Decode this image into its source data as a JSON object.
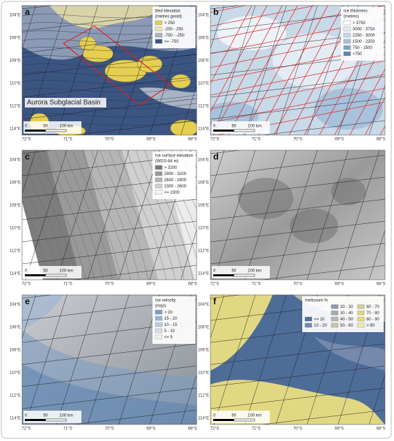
{
  "panels": [
    {
      "letter": "a",
      "legend_title": [
        "Bed elevation",
        "(metres geoid)"
      ],
      "legend": [
        {
          "label": "> 250",
          "color": "#e6cf4f"
        },
        {
          "label": "-250 - 250",
          "color": "#e9e2b4"
        },
        {
          "label": "-750 - -250",
          "color": "#a9b3c6"
        },
        {
          "label": "<= -750",
          "color": "#3b5582"
        }
      ],
      "annotation": "Aurora Subglacial Basin",
      "lat_labels": [
        "104°E",
        "106°E",
        "108°E",
        "110°E",
        "112°E",
        "114°E"
      ],
      "lon_labels": [
        "72°S",
        "71°S",
        "70°S",
        "69°S",
        "68°S"
      ],
      "scale_labels": [
        "0",
        "50",
        "100 km"
      ]
    },
    {
      "letter": "b",
      "legend_title": [
        "Ice thickness",
        "(metres)"
      ],
      "legend": [
        {
          "label": "> 3750",
          "color": "#ffffff"
        },
        {
          "label": "3000 - 3750",
          "color": "#e3ecf4"
        },
        {
          "label": "2250 - 3000",
          "color": "#c8d9e8"
        },
        {
          "label": "1500 - 2250",
          "color": "#a6c2dc"
        },
        {
          "label": "750 - 1500",
          "color": "#7fa4c8"
        },
        {
          "label": "<750",
          "color": "#5a86b6"
        }
      ],
      "lat_labels": [
        "104°E",
        "106°E",
        "108°E",
        "110°E",
        "112°E",
        "114°E"
      ],
      "lon_labels": [
        "72°S",
        "71°S",
        "70°S",
        "69°S",
        "68°S"
      ],
      "scale_labels": [
        "0",
        "50",
        "100 km"
      ]
    },
    {
      "letter": "c",
      "legend_title": [
        "Ice surface elevation",
        "(WGS-84 m)"
      ],
      "legend": [
        {
          "label": "> 3200",
          "color": "#777777"
        },
        {
          "label": "2900 - 3200",
          "color": "#999999"
        },
        {
          "label": "2600 - 2900",
          "color": "#b5b5b5"
        },
        {
          "label": "2300 - 2600",
          "color": "#d0d0d0"
        },
        {
          "label": "<= 2300",
          "color": "#f4f4f4"
        }
      ],
      "lat_labels": [
        "104°E",
        "106°E",
        "108°E",
        "110°E",
        "112°E",
        "114°E"
      ],
      "lon_labels": [
        "72°S",
        "71°S",
        "70°S",
        "69°S",
        "68°S"
      ],
      "scale_labels": [
        "0",
        "50",
        "100 km"
      ]
    },
    {
      "letter": "d",
      "lat_labels": [
        "104°E",
        "106°E",
        "108°E",
        "110°E",
        "112°E",
        "114°E"
      ],
      "lon_labels": [
        "72°S",
        "71°S",
        "70°S",
        "69°S",
        "68°S"
      ],
      "scale_labels": [
        "0",
        "50",
        "100 km"
      ]
    },
    {
      "letter": "e",
      "legend_title": [
        "Ice velocity",
        "(m/yr)"
      ],
      "legend": [
        {
          "label": "> 20",
          "color": "#7a9cc4"
        },
        {
          "label": "15 - 20",
          "color": "#9ab4d4"
        },
        {
          "label": "10 - 15",
          "color": "#b8cbe2"
        },
        {
          "label": "5 - 10",
          "color": "#d4e0ee"
        },
        {
          "label": "<= 5",
          "color": "#eef2f8"
        }
      ],
      "lat_labels": [
        "104°E",
        "106°E",
        "108°E",
        "110°E",
        "112°E",
        "114°E"
      ],
      "lon_labels": [
        "72°S",
        "71°S",
        "70°S",
        "69°S",
        "68°S"
      ],
      "scale_labels": [
        "0",
        "50",
        "100 km"
      ]
    },
    {
      "letter": "f",
      "legend_title": [
        "meltcount %"
      ],
      "legend": [
        {
          "label": "<= 10",
          "color": "#51709c"
        },
        {
          "label": "10 - 20",
          "color": "#7589ad"
        },
        {
          "label": "20 - 30",
          "color": "#8e9aac"
        },
        {
          "label": "30 - 40",
          "color": "#a5abaf"
        },
        {
          "label": "40 - 50",
          "color": "#b8b9b0"
        },
        {
          "label": "50 - 60",
          "color": "#c8c6a8"
        },
        {
          "label": "60 - 70",
          "color": "#d3cf9c"
        },
        {
          "label": "70 - 80",
          "color": "#dfd788"
        },
        {
          "label": "80 - 90",
          "color": "#e8dc6c"
        },
        {
          "label": "> 90",
          "color": "#f1e8a8"
        }
      ],
      "lat_labels": [
        "104°E",
        "106°E",
        "108°E",
        "110°E",
        "112°E",
        "114°E"
      ],
      "lon_labels": [
        "72°S",
        "71°S",
        "70°S",
        "69°S",
        "68°S"
      ],
      "scale_labels": [
        "0",
        "50",
        "100 km"
      ]
    }
  ]
}
